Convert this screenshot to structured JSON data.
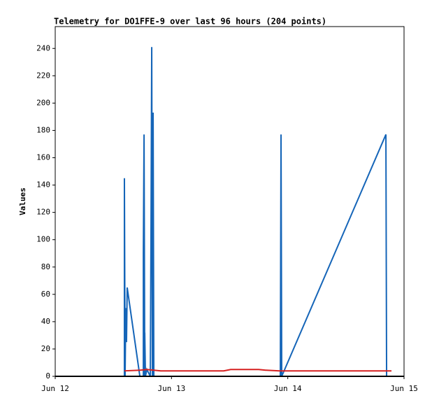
{
  "chart_data": {
    "type": "line",
    "title": "Telemetry for DO1FFE-9 over last 96 hours (204 points)",
    "y_label": "Values",
    "xlim": [
      0,
      3
    ],
    "xticks": [
      {
        "value": 0,
        "label": "Jun 12"
      },
      {
        "value": 1,
        "label": "Jun 13"
      },
      {
        "value": 2,
        "label": "Jun 14"
      },
      {
        "value": 3,
        "label": "Jun 15"
      }
    ],
    "ylim": [
      0,
      256
    ],
    "yticks": [
      0,
      20,
      40,
      60,
      80,
      100,
      120,
      140,
      160,
      180,
      200,
      220,
      240
    ],
    "series": [
      {
        "color": "#1565b8",
        "x": [
          0.595,
          0.595,
          0.601,
          0.607,
          0.613,
          0.619,
          0.728,
          0.758,
          0.758,
          0.764,
          0.77,
          0.77,
          0.776,
          0.788,
          0.818,
          0.824,
          0.83,
          0.836,
          0.842,
          0.848,
          1.936,
          1.942,
          1.948,
          2.844,
          2.85,
          2.892
        ],
        "values": [
          0,
          145,
          0,
          50,
          25,
          65,
          0,
          0,
          90,
          177,
          0,
          32,
          0,
          5,
          0,
          112,
          241,
          0,
          193,
          0,
          0,
          177,
          0,
          177,
          0,
          0
        ]
      },
      {
        "color": "#d62020",
        "x": [
          0.595,
          0.728,
          0.788,
          0.848,
          0.908,
          1.449,
          1.509,
          1.75,
          1.81,
          1.93,
          2.892
        ],
        "values": [
          4,
          4.5,
          5,
          4.5,
          4,
          4,
          5,
          5,
          4.5,
          4,
          4
        ]
      }
    ]
  }
}
